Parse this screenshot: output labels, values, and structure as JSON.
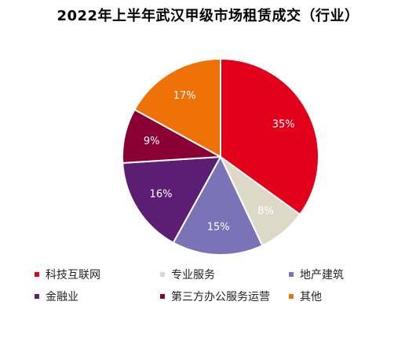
{
  "chart_data": {
    "type": "pie",
    "title": "2022年上半年武汉甲级市场租赁成交（行业）",
    "slices": [
      {
        "label": "科技互联网",
        "value": 35,
        "value_label": "35%",
        "color": "#e3001b"
      },
      {
        "label": "专业服务",
        "value": 8,
        "value_label": "8%",
        "color": "#ddd8c8"
      },
      {
        "label": "地产建筑",
        "value": 15,
        "value_label": "15%",
        "color": "#7b73b8"
      },
      {
        "label": "金融业",
        "value": 16,
        "value_label": "16%",
        "color": "#5c1e72"
      },
      {
        "label": "第三方办公服务运营",
        "value": 9,
        "value_label": "9%",
        "color": "#8a0036"
      },
      {
        "label": "其他",
        "value": 17,
        "value_label": "17%",
        "color": "#ef7208"
      }
    ],
    "legend_position": "bottom"
  }
}
